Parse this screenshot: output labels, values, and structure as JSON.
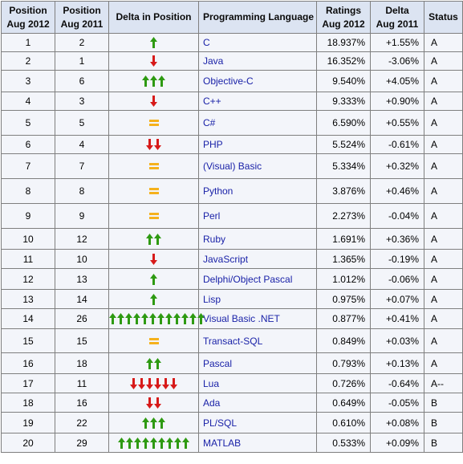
{
  "headers": {
    "pos2012": [
      "Position",
      "Aug 2012"
    ],
    "pos2011": [
      "Position",
      "Aug 2011"
    ],
    "delta_pos": "Delta in Position",
    "language": "Programming Language",
    "ratings": [
      "Ratings",
      "Aug 2012"
    ],
    "delta_rating": [
      "Delta",
      "Aug 2011"
    ],
    "status": "Status"
  },
  "colors": {
    "arrow_up": "#2e9a12",
    "arrow_down": "#d71a1a",
    "equal": "#f5b11c",
    "language_link": "#1a22a8",
    "header_bg": "#dce4f2",
    "row_bg": "#f3f5fa"
  },
  "rows": [
    {
      "pos2012": "1",
      "pos2011": "2",
      "delta": {
        "dir": "up",
        "count": 1
      },
      "language": "C",
      "rating": "18.937%",
      "delta_rating": "+1.55%",
      "status": "A",
      "h": 23
    },
    {
      "pos2012": "2",
      "pos2011": "1",
      "delta": {
        "dir": "down",
        "count": 1
      },
      "language": "Java",
      "rating": "16.352%",
      "delta_rating": "-3.06%",
      "status": "A",
      "h": 23
    },
    {
      "pos2012": "3",
      "pos2011": "6",
      "delta": {
        "dir": "up",
        "count": 3
      },
      "language": "Objective-C",
      "rating": "9.540%",
      "delta_rating": "+4.05%",
      "status": "A",
      "h": 27
    },
    {
      "pos2012": "4",
      "pos2011": "3",
      "delta": {
        "dir": "down",
        "count": 1
      },
      "language": "C++",
      "rating": "9.333%",
      "delta_rating": "+0.90%",
      "status": "A",
      "h": 23
    },
    {
      "pos2012": "5",
      "pos2011": "5",
      "delta": {
        "dir": "equal",
        "count": 1
      },
      "language": "C#",
      "rating": "6.590%",
      "delta_rating": "+0.55%",
      "status": "A",
      "h": 31
    },
    {
      "pos2012": "6",
      "pos2011": "4",
      "delta": {
        "dir": "down",
        "count": 2
      },
      "language": "PHP",
      "rating": "5.524%",
      "delta_rating": "-0.61%",
      "status": "A",
      "h": 23
    },
    {
      "pos2012": "7",
      "pos2011": "7",
      "delta": {
        "dir": "equal",
        "count": 1
      },
      "language": "(Visual) Basic",
      "rating": "5.334%",
      "delta_rating": "+0.32%",
      "status": "A",
      "h": 31
    },
    {
      "pos2012": "8",
      "pos2011": "8",
      "delta": {
        "dir": "equal",
        "count": 1
      },
      "language": "Python",
      "rating": "3.876%",
      "delta_rating": "+0.46%",
      "status": "A",
      "h": 31
    },
    {
      "pos2012": "9",
      "pos2011": "9",
      "delta": {
        "dir": "equal",
        "count": 1
      },
      "language": "Perl",
      "rating": "2.273%",
      "delta_rating": "-0.04%",
      "status": "A",
      "h": 31
    },
    {
      "pos2012": "10",
      "pos2011": "12",
      "delta": {
        "dir": "up",
        "count": 2
      },
      "language": "Ruby",
      "rating": "1.691%",
      "delta_rating": "+0.36%",
      "status": "A",
      "h": 26
    },
    {
      "pos2012": "11",
      "pos2011": "10",
      "delta": {
        "dir": "down",
        "count": 1
      },
      "language": "JavaScript",
      "rating": "1.365%",
      "delta_rating": "-0.19%",
      "status": "A",
      "h": 24
    },
    {
      "pos2012": "12",
      "pos2011": "13",
      "delta": {
        "dir": "up",
        "count": 1
      },
      "language": "Delphi/Object Pascal",
      "rating": "1.012%",
      "delta_rating": "-0.06%",
      "status": "A",
      "h": 26
    },
    {
      "pos2012": "13",
      "pos2011": "14",
      "delta": {
        "dir": "up",
        "count": 1
      },
      "language": "Lisp",
      "rating": "0.975%",
      "delta_rating": "+0.07%",
      "status": "A",
      "h": 24
    },
    {
      "pos2012": "14",
      "pos2011": "26",
      "delta": {
        "dir": "up",
        "count": 12
      },
      "language": "Visual Basic .NET",
      "rating": "0.877%",
      "delta_rating": "+0.41%",
      "status": "A",
      "h": 25
    },
    {
      "pos2012": "15",
      "pos2011": "15",
      "delta": {
        "dir": "equal",
        "count": 1
      },
      "language": "Transact-SQL",
      "rating": "0.849%",
      "delta_rating": "+0.03%",
      "status": "A",
      "h": 30
    },
    {
      "pos2012": "16",
      "pos2011": "18",
      "delta": {
        "dir": "up",
        "count": 2
      },
      "language": "Pascal",
      "rating": "0.793%",
      "delta_rating": "+0.13%",
      "status": "A",
      "h": 26
    },
    {
      "pos2012": "17",
      "pos2011": "11",
      "delta": {
        "dir": "down",
        "count": 6
      },
      "language": "Lua",
      "rating": "0.726%",
      "delta_rating": "-0.64%",
      "status": "A--",
      "h": 24
    },
    {
      "pos2012": "18",
      "pos2011": "16",
      "delta": {
        "dir": "down",
        "count": 2
      },
      "language": "Ada",
      "rating": "0.649%",
      "delta_rating": "-0.05%",
      "status": "B",
      "h": 24
    },
    {
      "pos2012": "19",
      "pos2011": "22",
      "delta": {
        "dir": "up",
        "count": 3
      },
      "language": "PL/SQL",
      "rating": "0.610%",
      "delta_rating": "+0.08%",
      "status": "B",
      "h": 26
    },
    {
      "pos2012": "20",
      "pos2011": "29",
      "delta": {
        "dir": "up",
        "count": 9
      },
      "language": "MATLAB",
      "rating": "0.533%",
      "delta_rating": "+0.09%",
      "status": "B",
      "h": 24
    }
  ]
}
